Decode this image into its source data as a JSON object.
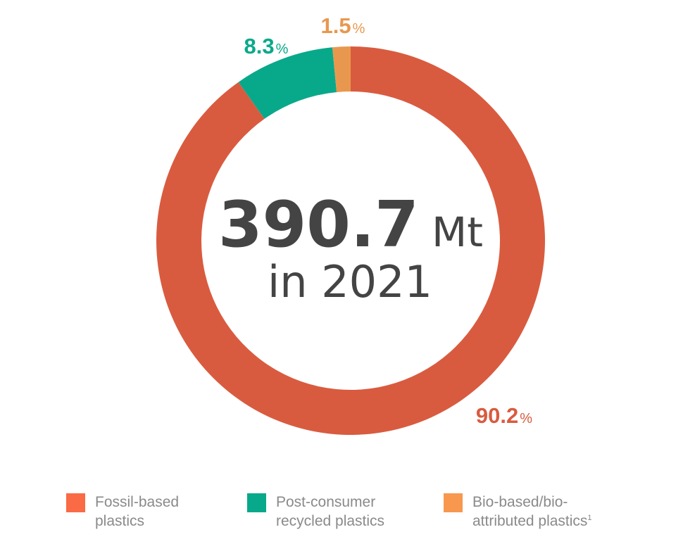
{
  "chart_data": {
    "type": "pie",
    "donut": true,
    "center": {
      "value": "390.7",
      "unit": "Mt",
      "subtitle": "in 2021"
    },
    "slices": [
      {
        "name": "Fossil-based plastics",
        "value": 90.2,
        "label": "90.2",
        "color": "#D95B3F"
      },
      {
        "name": "Post-consumer recycled plastics",
        "value": 8.3,
        "label": "8.3",
        "color": "#08A98A"
      },
      {
        "name": "Bio-based/bio-attributed plastics",
        "value": 1.5,
        "label": "1.5",
        "color": "#E8984E"
      }
    ],
    "percent_sign": "%",
    "legend": {
      "placement": "bottom",
      "items": [
        {
          "line1": "Fossil-based",
          "line2": "plastics",
          "footnote": "",
          "color": "#FA6A45"
        },
        {
          "line1": "Post-consumer",
          "line2": "recycled plastics",
          "footnote": "",
          "color": "#08A98A"
        },
        {
          "line1": "Bio-based/bio-",
          "line2": "attributed plastics",
          "footnote": "1",
          "color": "#F7984E"
        }
      ]
    }
  }
}
